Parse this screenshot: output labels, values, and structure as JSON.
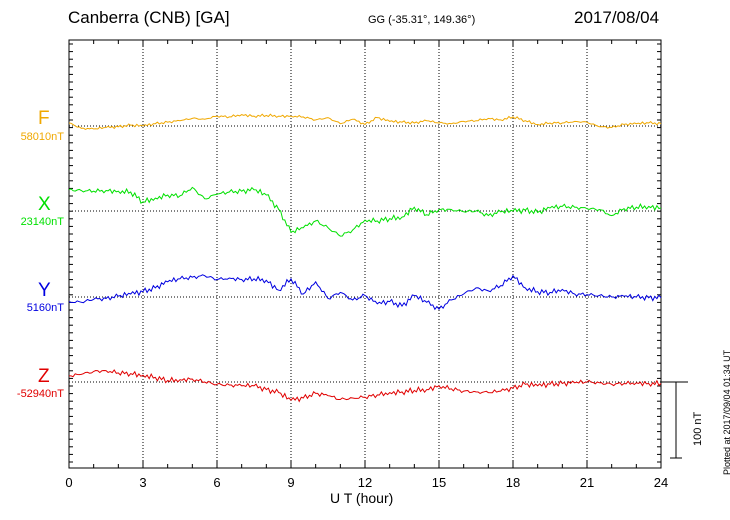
{
  "header": {
    "title": "Canberra (CNB)  [GA]",
    "coords": "GG (-35.31°, 149.36°)",
    "date": "2017/08/04"
  },
  "footer": {
    "plotted_note": "Plotted at 2017/09/04 01:34 UT",
    "scale_label": "100 nT"
  },
  "chart_data": {
    "type": "line",
    "title": "Canberra (CNB)  [GA]",
    "xlabel": "U T (hour)",
    "xlim": [
      0,
      24
    ],
    "x_ticks": [
      0,
      3,
      6,
      9,
      12,
      15,
      18,
      21,
      24
    ],
    "grid": true,
    "scale_bar_nT": 100,
    "series": [
      {
        "name": "F",
        "baseline": "58010nT",
        "color": "#f0a800",
        "x": [
          0,
          0.5,
          1,
          1.5,
          2,
          2.5,
          3,
          3.5,
          4,
          4.5,
          5,
          5.5,
          6,
          6.5,
          7,
          7.5,
          8,
          8.5,
          9,
          9.5,
          10,
          10.5,
          11,
          11.5,
          12,
          12.5,
          13,
          13.5,
          14,
          14.5,
          15,
          15.5,
          16,
          16.5,
          17,
          17.5,
          18,
          18.5,
          19,
          19.5,
          20,
          20.5,
          21,
          21.5,
          22,
          22.5,
          23,
          23.5,
          24
        ],
        "y": [
          4,
          -3,
          -4,
          -2,
          -1,
          1,
          0,
          3,
          5,
          7,
          10,
          9,
          13,
          12,
          15,
          13,
          14,
          13,
          13,
          12,
          8,
          11,
          3,
          9,
          2,
          11,
          6,
          5,
          4,
          7,
          4,
          3,
          6,
          7,
          10,
          8,
          12,
          7,
          2,
          4,
          4,
          6,
          5,
          -1,
          -2,
          2,
          3,
          4,
          3
        ]
      },
      {
        "name": "X",
        "baseline": "23140nT",
        "color": "#00e000",
        "x": [
          0,
          0.5,
          1,
          1.5,
          2,
          2.5,
          3,
          3.5,
          4,
          4.5,
          5,
          5.5,
          6,
          6.5,
          7,
          7.5,
          8,
          8.5,
          9,
          9.5,
          10,
          10.5,
          11,
          11.5,
          12,
          12.5,
          13,
          13.5,
          14,
          14.5,
          15,
          15.5,
          16,
          16.5,
          17,
          17.5,
          18,
          18.5,
          19,
          19.5,
          20,
          20.5,
          21,
          21.5,
          22,
          22.5,
          23,
          23.5,
          24
        ],
        "y": [
          28,
          27,
          26,
          27,
          26,
          25,
          12,
          17,
          21,
          20,
          31,
          16,
          22,
          25,
          26,
          28,
          21,
          2,
          -28,
          -22,
          -13,
          -22,
          -33,
          -25,
          -12,
          -13,
          -10,
          -8,
          5,
          -5,
          2,
          2,
          -1,
          0,
          -6,
          -1,
          0,
          1,
          -2,
          4,
          6,
          5,
          3,
          2,
          -6,
          3,
          5,
          6,
          4
        ]
      },
      {
        "name": "Y",
        "baseline": "5160nT",
        "color": "#0000e0",
        "x": [
          0,
          0.5,
          1,
          1.5,
          2,
          2.5,
          3,
          3.5,
          4,
          4.5,
          5,
          5.5,
          6,
          6.5,
          7,
          7.5,
          8,
          8.5,
          9,
          9.5,
          10,
          10.5,
          11,
          11.5,
          12,
          12.5,
          13,
          13.5,
          14,
          14.5,
          15,
          15.5,
          16,
          16.5,
          17,
          17.5,
          18,
          18.5,
          19,
          19.5,
          20,
          20.5,
          21,
          21.5,
          22,
          22.5,
          23,
          23.5,
          24
        ],
        "y": [
          -6,
          -7,
          -3,
          -2,
          1,
          4,
          7,
          12,
          20,
          24,
          26,
          28,
          23,
          25,
          23,
          24,
          22,
          9,
          24,
          4,
          20,
          -2,
          6,
          -4,
          2,
          -9,
          -6,
          -12,
          2,
          -7,
          -16,
          -4,
          4,
          12,
          8,
          15,
          28,
          12,
          7,
          6,
          10,
          4,
          3,
          2,
          0,
          1,
          0,
          -1,
          -1
        ]
      },
      {
        "name": "Z",
        "baseline": "-52940nT",
        "color": "#e00000",
        "x": [
          0,
          0.5,
          1,
          1.5,
          2,
          2.5,
          3,
          3.5,
          4,
          4.5,
          5,
          5.5,
          6,
          6.5,
          7,
          7.5,
          8,
          8.5,
          9,
          9.5,
          10,
          10.5,
          11,
          11.5,
          12,
          12.5,
          13,
          13.5,
          14,
          14.5,
          15,
          15.5,
          16,
          16.5,
          17,
          17.5,
          18,
          18.5,
          19,
          19.5,
          20,
          20.5,
          21,
          21.5,
          22,
          22.5,
          23,
          23.5,
          24
        ],
        "y": [
          8,
          10,
          14,
          15,
          12,
          11,
          9,
          6,
          2,
          3,
          4,
          0,
          -3,
          -4,
          -5,
          -5,
          -10,
          -14,
          -24,
          -21,
          -15,
          -18,
          -23,
          -21,
          -20,
          -17,
          -14,
          -13,
          -11,
          -10,
          -5,
          -9,
          -12,
          -13,
          -14,
          -12,
          -8,
          -3,
          -5,
          -3,
          -2,
          -1,
          0,
          -1,
          -3,
          -2,
          -1,
          -2,
          -2
        ]
      }
    ]
  }
}
